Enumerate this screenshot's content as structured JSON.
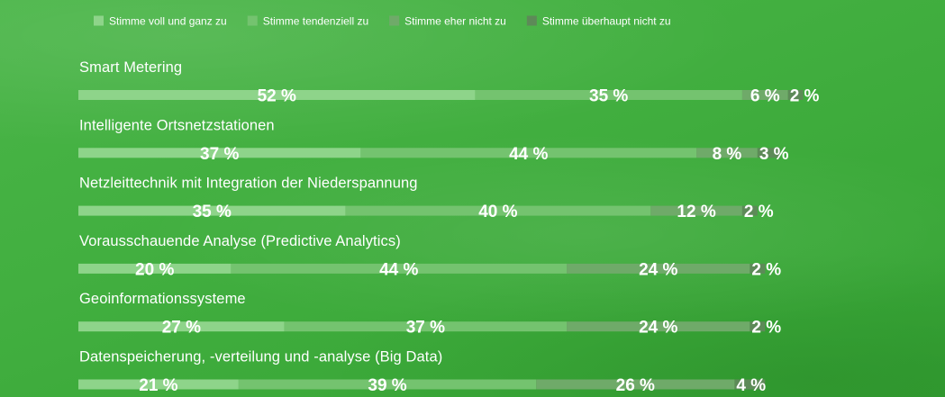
{
  "colors": {
    "background": "#42af40",
    "series": [
      "#8ed48a",
      "#74c36f",
      "#6faa69",
      "#5d8a58"
    ]
  },
  "chart_data": {
    "type": "bar",
    "orientation": "horizontal",
    "stacked": true,
    "xlim": [
      0,
      100
    ],
    "legend_position": "top-left",
    "value_suffix": " %",
    "categories": [
      "Smart Metering",
      "Intelligente Ortsnetzstationen",
      "Netzleittechnik mit Integration der Niederspannung",
      "Vorausschauende Analyse (Predictive Analytics)",
      "Geoinformationssysteme",
      "Datenspeicherung, -verteilung und -analyse (Big Data)"
    ],
    "series": [
      {
        "name": "Stimme voll und ganz zu",
        "values": [
          52,
          37,
          35,
          20,
          27,
          21
        ]
      },
      {
        "name": "Stimme tendenziell zu",
        "values": [
          35,
          44,
          40,
          44,
          37,
          39
        ]
      },
      {
        "name": "Stimme eher nicht zu",
        "values": [
          6,
          8,
          12,
          24,
          24,
          26
        ]
      },
      {
        "name": "Stimme überhaupt nicht zu",
        "values": [
          2,
          3,
          2,
          2,
          2,
          4
        ]
      }
    ]
  }
}
